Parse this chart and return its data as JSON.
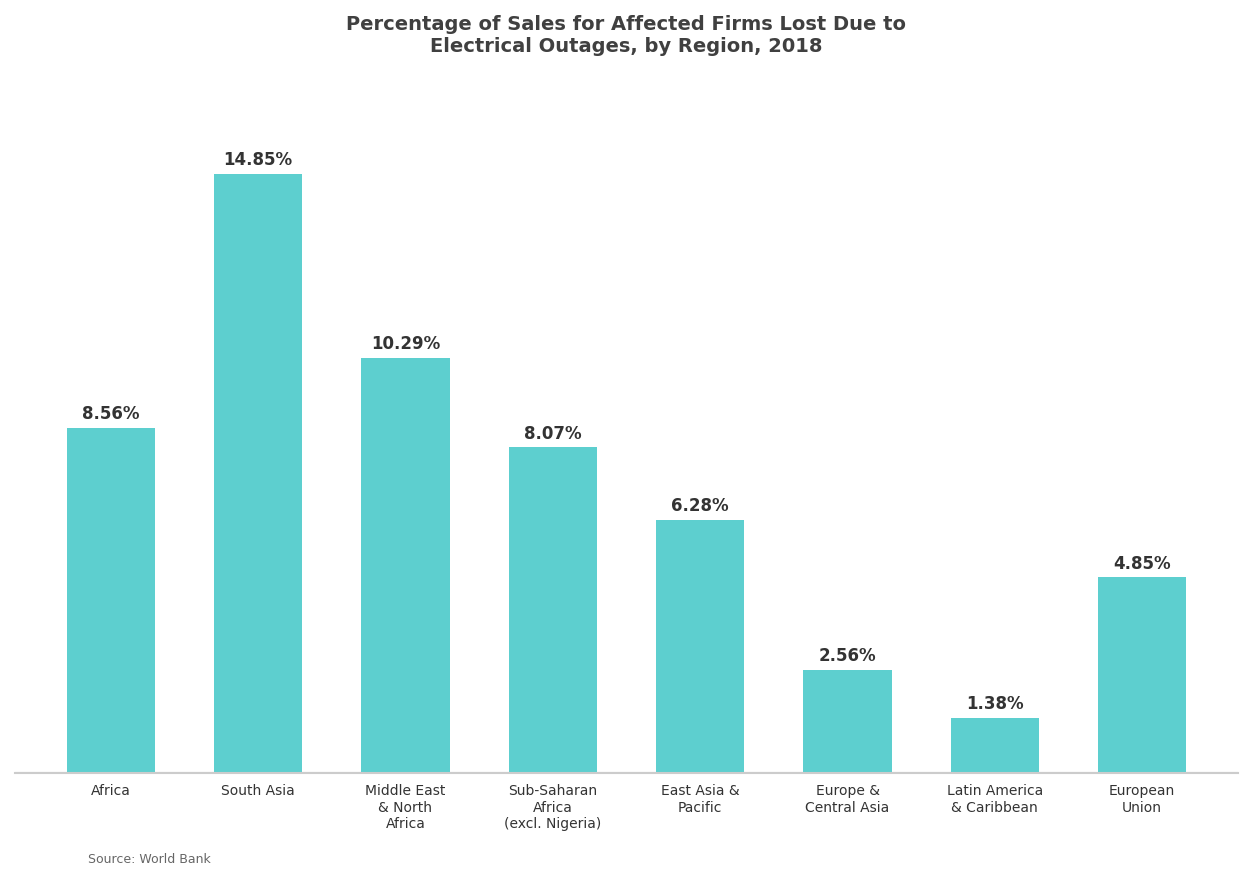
{
  "title_line1": "Percentage of Sales for Affected Firms Lost Due to",
  "title_line2": "Electrical Outages, by Region, 2018",
  "categories": [
    "Africa",
    "South Asia",
    "Middle East\n& North\nAfrica",
    "Sub-Saharan\nAfrica\n(excl. Nigeria)",
    "East Asia &\nPacific",
    "Europe &\nCentral Asia",
    "Latin America\n& Caribbean",
    "European\nUnion"
  ],
  "values": [
    8.56,
    14.85,
    10.29,
    8.07,
    6.28,
    2.56,
    1.38,
    4.85
  ],
  "bar_color": "#5dcfcf",
  "title_color": "#404040",
  "label_color": "#333333",
  "label_fontsize": 12,
  "tick_fontsize": 10,
  "background_color": "#ffffff",
  "plot_bg_color": "#ffffff",
  "source_text": "Source: World Bank",
  "axis_line_color": "#cccccc",
  "ylim": [
    0,
    17
  ]
}
